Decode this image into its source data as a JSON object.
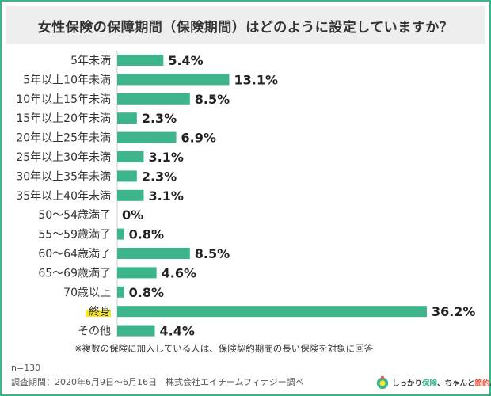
{
  "title": "女性保険の保障期間（保険期間）はどのように設定していますか？",
  "chart_data": {
    "type": "bar",
    "orientation": "horizontal",
    "unit": "%",
    "categories": [
      "5年未満",
      "5年以上10年未満",
      "10年以上15年未満",
      "15年以上20年未満",
      "20年以上25年未満",
      "25年以上30年未満",
      "30年以上35年未満",
      "35年以上40年未満",
      "50〜54歳満了",
      "55〜59歳満了",
      "60〜64歳満了",
      "65〜69歳満了",
      "70歳以上",
      "終身",
      "その他"
    ],
    "values": [
      5.4,
      13.1,
      8.5,
      2.3,
      6.9,
      3.1,
      2.3,
      3.1,
      0,
      0.8,
      8.5,
      4.6,
      0.8,
      36.2,
      4.4
    ],
    "value_labels": [
      "5.4%",
      "13.1%",
      "8.5%",
      "2.3%",
      "6.9%",
      "3.1%",
      "2.3%",
      "3.1%",
      "0%",
      "0.8%",
      "8.5%",
      "4.6%",
      "0.8%",
      "36.2%",
      "4.4%"
    ],
    "highlight_index": 13,
    "bar_color": "#3db489",
    "highlight_color": "#f5e631"
  },
  "footnote": "※複数の保険に加入している人は、保険契約期間の長い保険を対象に回答",
  "sample_size": "n=130",
  "survey_info": "調査期間：2020年6月9日〜6月16日　株式会社エイチームフィナジー調べ",
  "logo": {
    "part1": "しっかり",
    "part2": "保険",
    "part3": "、ちゃんと",
    "part4": "節約",
    "part5": "。"
  }
}
